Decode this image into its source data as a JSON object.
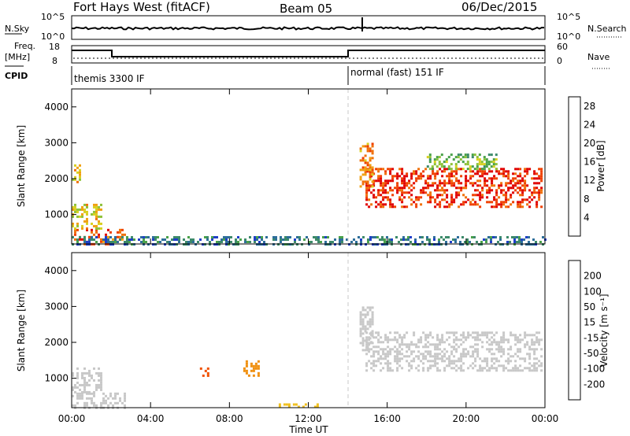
{
  "header": {
    "station": "Fort Hays West (fitACF)",
    "beam": "Beam 05",
    "date": "06/Dec/2015"
  },
  "top_panels": {
    "nsky_label": "N.Sky",
    "nsky_ticks": [
      "10^5",
      "10^0"
    ],
    "nsearch_label": "N.Search",
    "nsearch_ticks": [
      "10^5",
      "10^0"
    ],
    "freq_label": "Freq.",
    "freq_unit": "[MHz]",
    "freq_ticks": [
      "18",
      "8"
    ],
    "nave_label": "Nave",
    "nave_ticks": [
      "60",
      "0"
    ],
    "cpid_label": "CPID",
    "cpid_segments": [
      {
        "name": "themis 3300 IF",
        "start_hour": 0,
        "end_hour": 14
      },
      {
        "name": "normal (fast) 151 IF",
        "start_hour": 14,
        "end_hour": 24
      }
    ]
  },
  "chart_data": [
    {
      "type": "heatmap",
      "panel": "power",
      "ylabel": "Slant Range [km]",
      "xlabel": "Time UT",
      "x_ticks": [
        "00:00",
        "04:00",
        "08:00",
        "12:00",
        "16:00",
        "20:00",
        "00:00"
      ],
      "xlim_hours": [
        0,
        24
      ],
      "y_ticks": [
        1000,
        2000,
        3000,
        4000
      ],
      "ylim": [
        180,
        4500
      ],
      "colorbar": {
        "label": "Power [dB]",
        "ticks": [
          4,
          8,
          12,
          16,
          20,
          24,
          28
        ],
        "range": [
          0,
          30
        ],
        "colors": [
          "#0000ff",
          "#1f3fc8",
          "#2d6e9a",
          "#3c8a6a",
          "#4aa24a",
          "#8fc23a",
          "#d8d020",
          "#f0a010",
          "#f07008",
          "#f04000",
          "#e00000"
        ]
      },
      "bands": [
        {
          "t0": 0.0,
          "t1": 2.7,
          "r0": 200,
          "r1": 600,
          "value": 25
        },
        {
          "t0": 0.0,
          "t1": 1.5,
          "r0": 600,
          "r1": 1300,
          "value": 18
        },
        {
          "t0": 0.0,
          "t1": 0.4,
          "r0": 1900,
          "r1": 2400,
          "value": 20
        },
        {
          "t0": 14.9,
          "t1": 23.8,
          "r0": 1200,
          "r1": 2300,
          "value": 27
        },
        {
          "t0": 14.6,
          "t1": 15.2,
          "r0": 1800,
          "r1": 3000,
          "value": 22
        },
        {
          "t0": 18.0,
          "t1": 21.5,
          "r0": 2300,
          "r1": 2700,
          "value": 14
        },
        {
          "t0": 0.0,
          "t1": 24.0,
          "r0": 180,
          "r1": 400,
          "value": 8
        }
      ]
    },
    {
      "type": "heatmap",
      "panel": "velocity",
      "ylabel": "Slant Range [km]",
      "xlabel": "Time UT",
      "x_ticks": [
        "00:00",
        "04:00",
        "08:00",
        "12:00",
        "16:00",
        "20:00",
        "00:00"
      ],
      "xlim_hours": [
        0,
        24
      ],
      "y_ticks": [
        1000,
        2000,
        3000,
        4000
      ],
      "ylim": [
        180,
        4500
      ],
      "colorbar": {
        "label": "Velocity [m s⁻¹]",
        "ticks": [
          200,
          100,
          50,
          15,
          -15,
          -50,
          -100,
          -200
        ],
        "colors": [
          "#1a3ab8",
          "#2d6e9a",
          "#3c8a6a",
          "#4cbc3c",
          "#c8c8c8",
          "#f0c020",
          "#f09010",
          "#f05000",
          "#e00000"
        ]
      },
      "bands": [
        {
          "t0": 0.0,
          "t1": 2.7,
          "r0": 200,
          "r1": 600,
          "value": 0
        },
        {
          "t0": 0.0,
          "t1": 1.5,
          "r0": 600,
          "r1": 1300,
          "value": 5
        },
        {
          "t0": 14.9,
          "t1": 23.8,
          "r0": 1200,
          "r1": 2300,
          "value": 0
        },
        {
          "t0": 14.6,
          "t1": 15.2,
          "r0": 1800,
          "r1": 3000,
          "value": 3
        },
        {
          "t0": 6.5,
          "t1": 7.0,
          "r0": 1100,
          "r1": 1300,
          "value": -150
        },
        {
          "t0": 8.7,
          "t1": 9.6,
          "r0": 1100,
          "r1": 1500,
          "value": -60
        },
        {
          "t0": 10.5,
          "t1": 12.5,
          "r0": 180,
          "r1": 300,
          "value": -30
        }
      ]
    }
  ]
}
